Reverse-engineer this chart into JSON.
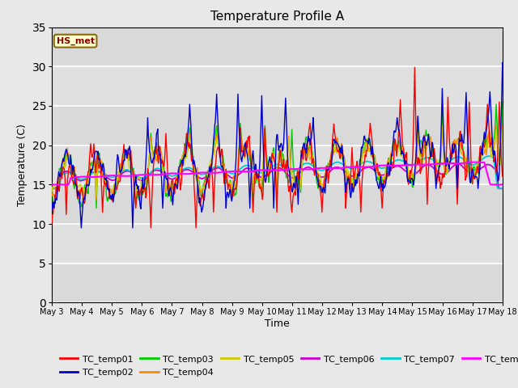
{
  "title": "Temperature Profile A",
  "xlabel": "Time",
  "ylabel": "Temperature (C)",
  "ylim": [
    0,
    35
  ],
  "yticks": [
    0,
    5,
    10,
    15,
    20,
    25,
    30,
    35
  ],
  "annotation_text": "HS_met",
  "series_colors": {
    "TC_temp01": "#FF0000",
    "TC_temp02": "#0000CD",
    "TC_temp03": "#00CC00",
    "TC_temp04": "#FF8800",
    "TC_temp05": "#CCCC00",
    "TC_temp06": "#CC00CC",
    "TC_temp07": "#00CCCC",
    "TC_temp08": "#FF00FF"
  },
  "fig_facecolor": "#E8E8E8",
  "axes_facecolor": "#E0E0E0",
  "grid_color": "#FFFFFF",
  "num_points": 720,
  "legend_ncol": 6,
  "figsize": [
    6.4,
    4.8
  ],
  "dpi": 100
}
